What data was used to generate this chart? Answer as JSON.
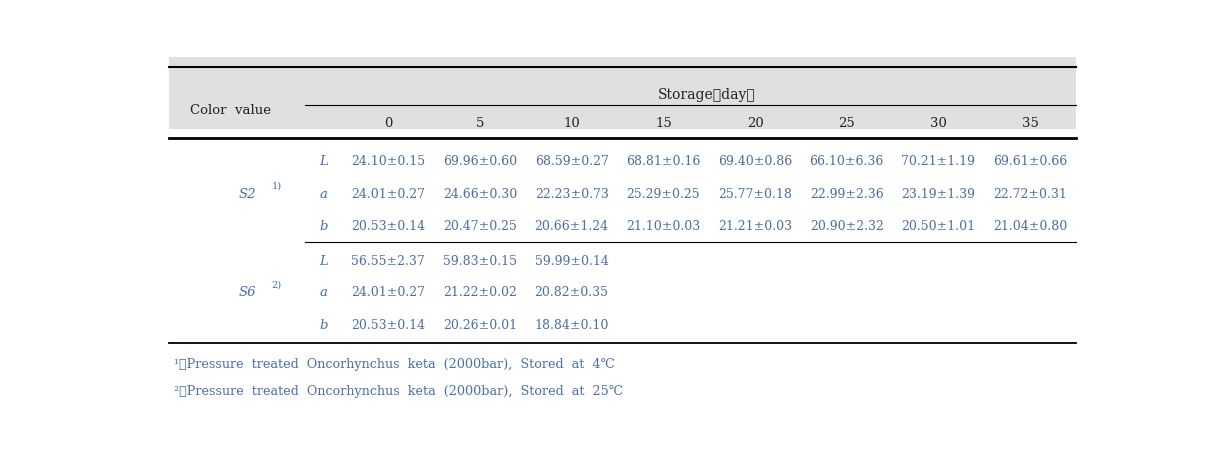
{
  "header_storage": "Storage（day）",
  "header_color_value": "Color  value",
  "col_headers": [
    "0",
    "5",
    "10",
    "15",
    "20",
    "25",
    "30",
    "35"
  ],
  "rows_s2": [
    {
      "measure": "L",
      "values": [
        "24.10±0.15",
        "69.96±0.60",
        "68.59±0.27",
        "68.81±0.16",
        "69.40±0.86",
        "66.10±6.36",
        "70.21±1.19",
        "69.61±0.66"
      ]
    },
    {
      "measure": "a",
      "values": [
        "24.01±0.27",
        "24.66±0.30",
        "22.23±0.73",
        "25.29±0.25",
        "25.77±0.18",
        "22.99±2.36",
        "23.19±1.39",
        "22.72±0.31"
      ]
    },
    {
      "measure": "b",
      "values": [
        "20.53±0.14",
        "20.47±0.25",
        "20.66±1.24",
        "21.10±0.03",
        "21.21±0.03",
        "20.90±2.32",
        "20.50±1.01",
        "21.04±0.80"
      ]
    }
  ],
  "rows_s6": [
    {
      "measure": "L",
      "values": [
        "56.55±2.37",
        "59.83±0.15",
        "59.99±0.14",
        "",
        "",
        "",
        "",
        ""
      ]
    },
    {
      "measure": "a",
      "values": [
        "24.01±0.27",
        "21.22±0.02",
        "20.82±0.35",
        "",
        "",
        "",
        "",
        ""
      ]
    },
    {
      "measure": "b",
      "values": [
        "20.53±0.14",
        "20.26±0.01",
        "18.84±0.10",
        "",
        "",
        "",
        "",
        ""
      ]
    }
  ],
  "footnote1": "¹）Pressure  treated  Oncorhynchus  keta  (2000bar),  Stored  at  4℃",
  "footnote2": "²）Pressure  treated  Oncorhynchus  keta  (2000bar),  Stored  at  25℃",
  "text_color": "#4a6fa5",
  "dark_text": "#222222",
  "font_size": 9.5,
  "footnote_size": 9.2,
  "header_bg": "#e0e0e0"
}
